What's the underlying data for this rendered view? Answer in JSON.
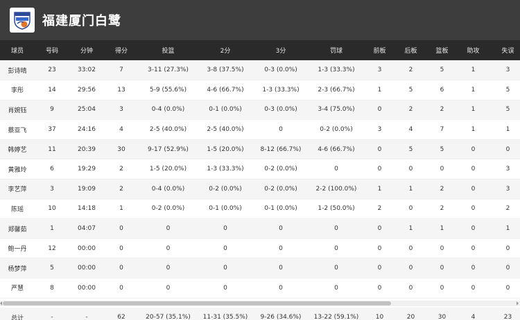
{
  "team": {
    "name": "福建厦门白鹭",
    "logo_icon": "team-logo-icon"
  },
  "columns": [
    "球员",
    "号码",
    "分钟",
    "得分",
    "投篮",
    "2分",
    "3分",
    "罚球",
    "前板",
    "后板",
    "篮板",
    "助攻",
    "失误"
  ],
  "players": [
    {
      "name": "彭诗晴",
      "number": "23",
      "minutes": "33:02",
      "points": "7",
      "fg": "3-11 (27.3%)",
      "two": "3-8 (37.5%)",
      "three": "0-3 (0.0%)",
      "ft": "1-3 (33.3%)",
      "oreb": "3",
      "dreb": "2",
      "reb": "5",
      "ast": "1",
      "tov": "3"
    },
    {
      "name": "李彤",
      "number": "14",
      "minutes": "29:56",
      "points": "13",
      "fg": "5-9 (55.6%)",
      "two": "4-6 (66.7%)",
      "three": "1-3 (33.3%)",
      "ft": "2-3 (66.7%)",
      "oreb": "1",
      "dreb": "5",
      "reb": "6",
      "ast": "1",
      "tov": "5"
    },
    {
      "name": "肖婉钰",
      "number": "9",
      "minutes": "25:04",
      "points": "3",
      "fg": "0-4 (0.0%)",
      "two": "0-1 (0.0%)",
      "three": "0-3 (0.0%)",
      "ft": "3-4 (75.0%)",
      "oreb": "0",
      "dreb": "2",
      "reb": "2",
      "ast": "1",
      "tov": "5"
    },
    {
      "name": "蔡亚飞",
      "number": "37",
      "minutes": "24:16",
      "points": "4",
      "fg": "2-5 (40.0%)",
      "two": "2-5 (40.0%)",
      "three": "0",
      "ft": "0-2 (0.0%)",
      "oreb": "3",
      "dreb": "4",
      "reb": "7",
      "ast": "1",
      "tov": "1"
    },
    {
      "name": "韩婷艺",
      "number": "11",
      "minutes": "20:39",
      "points": "30",
      "fg": "9-17 (52.9%)",
      "two": "1-5 (20.0%)",
      "three": "8-12 (66.7%)",
      "ft": "4-6 (66.7%)",
      "oreb": "0",
      "dreb": "5",
      "reb": "5",
      "ast": "0",
      "tov": "0"
    },
    {
      "name": "黄雅玲",
      "number": "6",
      "minutes": "19:29",
      "points": "2",
      "fg": "1-5 (20.0%)",
      "two": "1-3 (33.3%)",
      "three": "0-2 (0.0%)",
      "ft": "0",
      "oreb": "0",
      "dreb": "0",
      "reb": "0",
      "ast": "0",
      "tov": "3"
    },
    {
      "name": "李艺萍",
      "number": "3",
      "minutes": "19:09",
      "points": "2",
      "fg": "0-4 (0.0%)",
      "two": "0-2 (0.0%)",
      "three": "0-2 (0.0%)",
      "ft": "2-2 (100.0%)",
      "oreb": "1",
      "dreb": "1",
      "reb": "2",
      "ast": "0",
      "tov": "3"
    },
    {
      "name": "陈瑶",
      "number": "10",
      "minutes": "14:18",
      "points": "1",
      "fg": "0-2 (0.0%)",
      "two": "0-1 (0.0%)",
      "three": "0-1 (0.0%)",
      "ft": "1-2 (50.0%)",
      "oreb": "2",
      "dreb": "0",
      "reb": "2",
      "ast": "0",
      "tov": "2"
    },
    {
      "name": "郑馨茹",
      "number": "1",
      "minutes": "04:07",
      "points": "0",
      "fg": "0",
      "two": "0",
      "three": "0",
      "ft": "0",
      "oreb": "0",
      "dreb": "1",
      "reb": "1",
      "ast": "0",
      "tov": "1"
    },
    {
      "name": "鲍一丹",
      "number": "12",
      "minutes": "00:00",
      "points": "0",
      "fg": "0",
      "two": "0",
      "three": "0",
      "ft": "0",
      "oreb": "0",
      "dreb": "0",
      "reb": "0",
      "ast": "0",
      "tov": "0"
    },
    {
      "name": "杨梦萍",
      "number": "5",
      "minutes": "00:00",
      "points": "0",
      "fg": "0",
      "two": "0",
      "three": "0",
      "ft": "0",
      "oreb": "0",
      "dreb": "0",
      "reb": "0",
      "ast": "0",
      "tov": "0"
    },
    {
      "name": "严慧",
      "number": "8",
      "minutes": "00:00",
      "points": "0",
      "fg": "0",
      "two": "0",
      "three": "0",
      "ft": "0",
      "oreb": "0",
      "dreb": "0",
      "reb": "0",
      "ast": "0",
      "tov": "0"
    }
  ],
  "totals": {
    "label": "总计",
    "number": "-",
    "minutes": "-",
    "points": "62",
    "fg": "20-57 (35.1%)",
    "two": "11-31 (35.5%)",
    "three": "9-26 (34.6%)",
    "ft": "13-22 (59.1%)",
    "oreb": "10",
    "dreb": "20",
    "reb": "30",
    "ast": "4",
    "tov": "23"
  }
}
